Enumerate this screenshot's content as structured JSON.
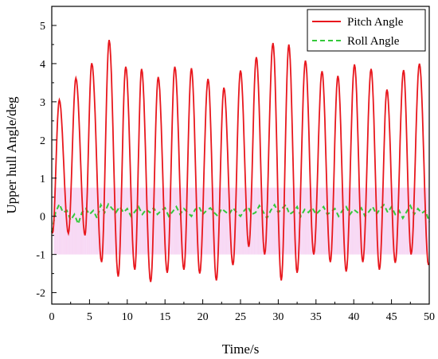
{
  "chart_data": {
    "type": "line",
    "title": "",
    "xlabel": "Time/s",
    "ylabel": "Upper hull Angle/deg",
    "xlim": [
      0,
      50
    ],
    "ylim": [
      -2.3,
      5.5
    ],
    "x_ticks": [
      0,
      5,
      10,
      15,
      20,
      25,
      30,
      35,
      40,
      45,
      50
    ],
    "y_ticks": [
      -2,
      -1,
      0,
      1,
      2,
      3,
      4,
      5
    ],
    "x_tick_labels": [
      "0",
      "5",
      "10",
      "15",
      "20",
      "25",
      "30",
      "35",
      "40",
      "45",
      "50"
    ],
    "y_tick_labels": [
      "-2",
      "-1",
      "0",
      "1",
      "2",
      "3",
      "4",
      "5"
    ],
    "grid": false,
    "legend": {
      "position": "top-right",
      "style": "boxed"
    },
    "series": [
      {
        "name": "Pitch Angle",
        "color": "#e8171d",
        "dash": "solid",
        "peaks": [
          [
            1.0,
            3.05
          ],
          [
            3.2,
            3.62
          ],
          [
            5.3,
            4.01
          ],
          [
            7.6,
            4.62
          ],
          [
            9.8,
            3.92
          ],
          [
            11.9,
            3.86
          ],
          [
            14.1,
            3.65
          ],
          [
            16.3,
            3.92
          ],
          [
            18.5,
            3.88
          ],
          [
            20.7,
            3.6
          ],
          [
            22.8,
            3.37
          ],
          [
            25.0,
            3.82
          ],
          [
            27.1,
            4.17
          ],
          [
            29.3,
            4.54
          ],
          [
            31.4,
            4.5
          ],
          [
            33.6,
            4.08
          ],
          [
            35.8,
            3.8
          ],
          [
            37.9,
            3.68
          ],
          [
            40.1,
            3.98
          ],
          [
            42.3,
            3.86
          ],
          [
            44.4,
            3.32
          ],
          [
            46.6,
            3.83
          ],
          [
            48.7,
            4.0
          ]
        ],
        "troughs": [
          [
            0.1,
            -0.45
          ],
          [
            2.2,
            -0.45
          ],
          [
            4.4,
            -0.5
          ],
          [
            6.6,
            -1.2
          ],
          [
            8.8,
            -1.58
          ],
          [
            11.0,
            -1.4
          ],
          [
            13.1,
            -1.72
          ],
          [
            15.3,
            -1.48
          ],
          [
            17.5,
            -1.4
          ],
          [
            19.6,
            -1.5
          ],
          [
            21.8,
            -1.68
          ],
          [
            24.0,
            -1.28
          ],
          [
            26.1,
            -0.8
          ],
          [
            28.2,
            -1.0
          ],
          [
            30.4,
            -1.68
          ],
          [
            32.5,
            -1.48
          ],
          [
            34.7,
            -1.0
          ],
          [
            36.9,
            -1.2
          ],
          [
            39.0,
            -1.45
          ],
          [
            41.2,
            -1.2
          ],
          [
            43.4,
            -1.4
          ],
          [
            45.5,
            -1.22
          ],
          [
            47.6,
            -1.0
          ],
          [
            49.9,
            -1.28
          ]
        ]
      },
      {
        "name": "Roll Angle",
        "color": "#34c93a",
        "dash": "dashed",
        "values": [
          [
            0.0,
            -0.42
          ],
          [
            0.5,
            0.1
          ],
          [
            1.0,
            0.32
          ],
          [
            1.5,
            0.1
          ],
          [
            2.0,
            0.15
          ],
          [
            2.5,
            -0.1
          ],
          [
            3.0,
            0.05
          ],
          [
            3.5,
            -0.2
          ],
          [
            4.0,
            0.1
          ],
          [
            4.5,
            0.2
          ],
          [
            5.0,
            0.05
          ],
          [
            5.5,
            0.15
          ],
          [
            6.0,
            -0.05
          ],
          [
            6.5,
            0.3
          ],
          [
            7.0,
            0.1
          ],
          [
            7.5,
            0.32
          ],
          [
            8.0,
            0.2
          ],
          [
            8.5,
            0.1
          ],
          [
            9.0,
            0.25
          ],
          [
            9.5,
            0.1
          ],
          [
            10.0,
            0.2
          ],
          [
            10.5,
            0.0
          ],
          [
            11.0,
            0.12
          ],
          [
            11.5,
            0.25
          ],
          [
            12.0,
            0.05
          ],
          [
            12.5,
            0.18
          ],
          [
            13.0,
            0.1
          ],
          [
            13.5,
            0.22
          ],
          [
            14.0,
            0.05
          ],
          [
            14.5,
            0.15
          ],
          [
            15.0,
            0.22
          ],
          [
            15.5,
            0.0
          ],
          [
            16.0,
            0.12
          ],
          [
            16.5,
            0.25
          ],
          [
            17.0,
            0.05
          ],
          [
            17.5,
            0.2
          ],
          [
            18.0,
            0.1
          ],
          [
            18.5,
            0.0
          ],
          [
            19.0,
            0.18
          ],
          [
            19.5,
            0.25
          ],
          [
            20.0,
            0.05
          ],
          [
            20.5,
            0.15
          ],
          [
            21.0,
            0.22
          ],
          [
            21.5,
            0.1
          ],
          [
            22.0,
            0.0
          ],
          [
            22.5,
            0.2
          ],
          [
            23.0,
            0.12
          ],
          [
            23.5,
            0.05
          ],
          [
            24.0,
            0.22
          ],
          [
            24.5,
            0.1
          ],
          [
            25.0,
            0.0
          ],
          [
            25.5,
            0.15
          ],
          [
            26.0,
            0.25
          ],
          [
            26.5,
            0.05
          ],
          [
            27.0,
            0.1
          ],
          [
            27.5,
            0.28
          ],
          [
            28.0,
            0.12
          ],
          [
            28.5,
            -0.05
          ],
          [
            29.0,
            0.15
          ],
          [
            29.5,
            0.3
          ],
          [
            30.0,
            0.1
          ],
          [
            30.5,
            0.2
          ],
          [
            31.0,
            0.3
          ],
          [
            31.5,
            0.05
          ],
          [
            32.0,
            0.12
          ],
          [
            32.5,
            0.25
          ],
          [
            33.0,
            0.0
          ],
          [
            33.5,
            0.18
          ],
          [
            34.0,
            0.1
          ],
          [
            34.5,
            0.22
          ],
          [
            35.0,
            0.05
          ],
          [
            35.5,
            0.15
          ],
          [
            36.0,
            0.25
          ],
          [
            36.5,
            0.05
          ],
          [
            37.0,
            0.12
          ],
          [
            37.5,
            0.2
          ],
          [
            38.0,
            0.0
          ],
          [
            38.5,
            0.15
          ],
          [
            39.0,
            0.25
          ],
          [
            39.5,
            0.05
          ],
          [
            40.0,
            0.18
          ],
          [
            40.5,
            0.1
          ],
          [
            41.0,
            0.22
          ],
          [
            41.5,
            0.0
          ],
          [
            42.0,
            0.12
          ],
          [
            42.5,
            0.25
          ],
          [
            43.0,
            0.05
          ],
          [
            43.5,
            0.2
          ],
          [
            44.0,
            0.3
          ],
          [
            44.5,
            0.1
          ],
          [
            45.0,
            0.25
          ],
          [
            45.5,
            0.05
          ],
          [
            46.0,
            0.15
          ],
          [
            46.5,
            -0.05
          ],
          [
            47.0,
            0.12
          ],
          [
            47.5,
            0.28
          ],
          [
            48.0,
            0.05
          ],
          [
            48.5,
            0.2
          ],
          [
            49.0,
            0.08
          ],
          [
            49.5,
            0.15
          ],
          [
            50.0,
            -0.15
          ]
        ]
      }
    ],
    "shaded_band": {
      "color": "#f3c6ef",
      "y_range": [
        -1.0,
        0.75
      ],
      "x_range": [
        0.2,
        50
      ],
      "period": 2.18
    }
  }
}
